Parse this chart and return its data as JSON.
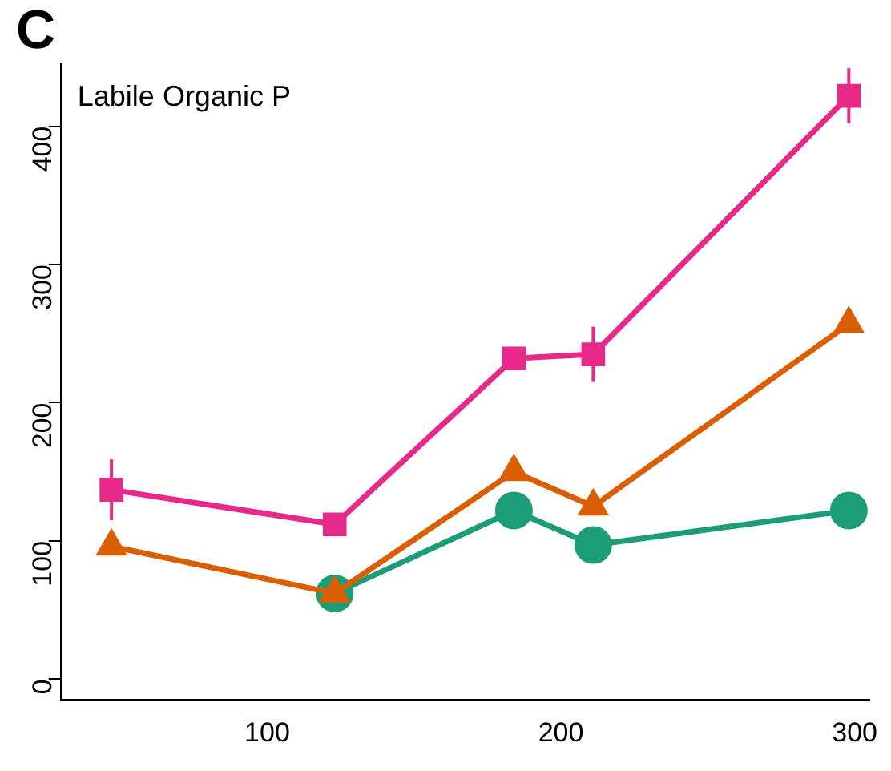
{
  "chart_data": {
    "type": "line",
    "title": "C",
    "annotations": [
      "Labile Organic P"
    ],
    "x": [
      47,
      123,
      184,
      211,
      298
    ],
    "series": [
      {
        "name": null,
        "color": "#e7298a",
        "marker": "square",
        "values": [
          137,
          112,
          232,
          235,
          422
        ],
        "errors": [
          22,
          8,
          8,
          20,
          20
        ]
      },
      {
        "name": null,
        "color": "#d95f02",
        "marker": "triangle",
        "values": [
          96,
          62,
          150,
          125,
          257
        ]
      },
      {
        "name": null,
        "color": "#1b9e77",
        "marker": "circle",
        "values": [
          null,
          62,
          122,
          97,
          122
        ]
      }
    ],
    "xlim": [
      30,
      305
    ],
    "xticks": [
      100,
      200,
      300
    ],
    "ylim": [
      -15,
      445
    ],
    "yticks": [
      0,
      100,
      200,
      300,
      400
    ],
    "grid": false,
    "legend": false
  }
}
